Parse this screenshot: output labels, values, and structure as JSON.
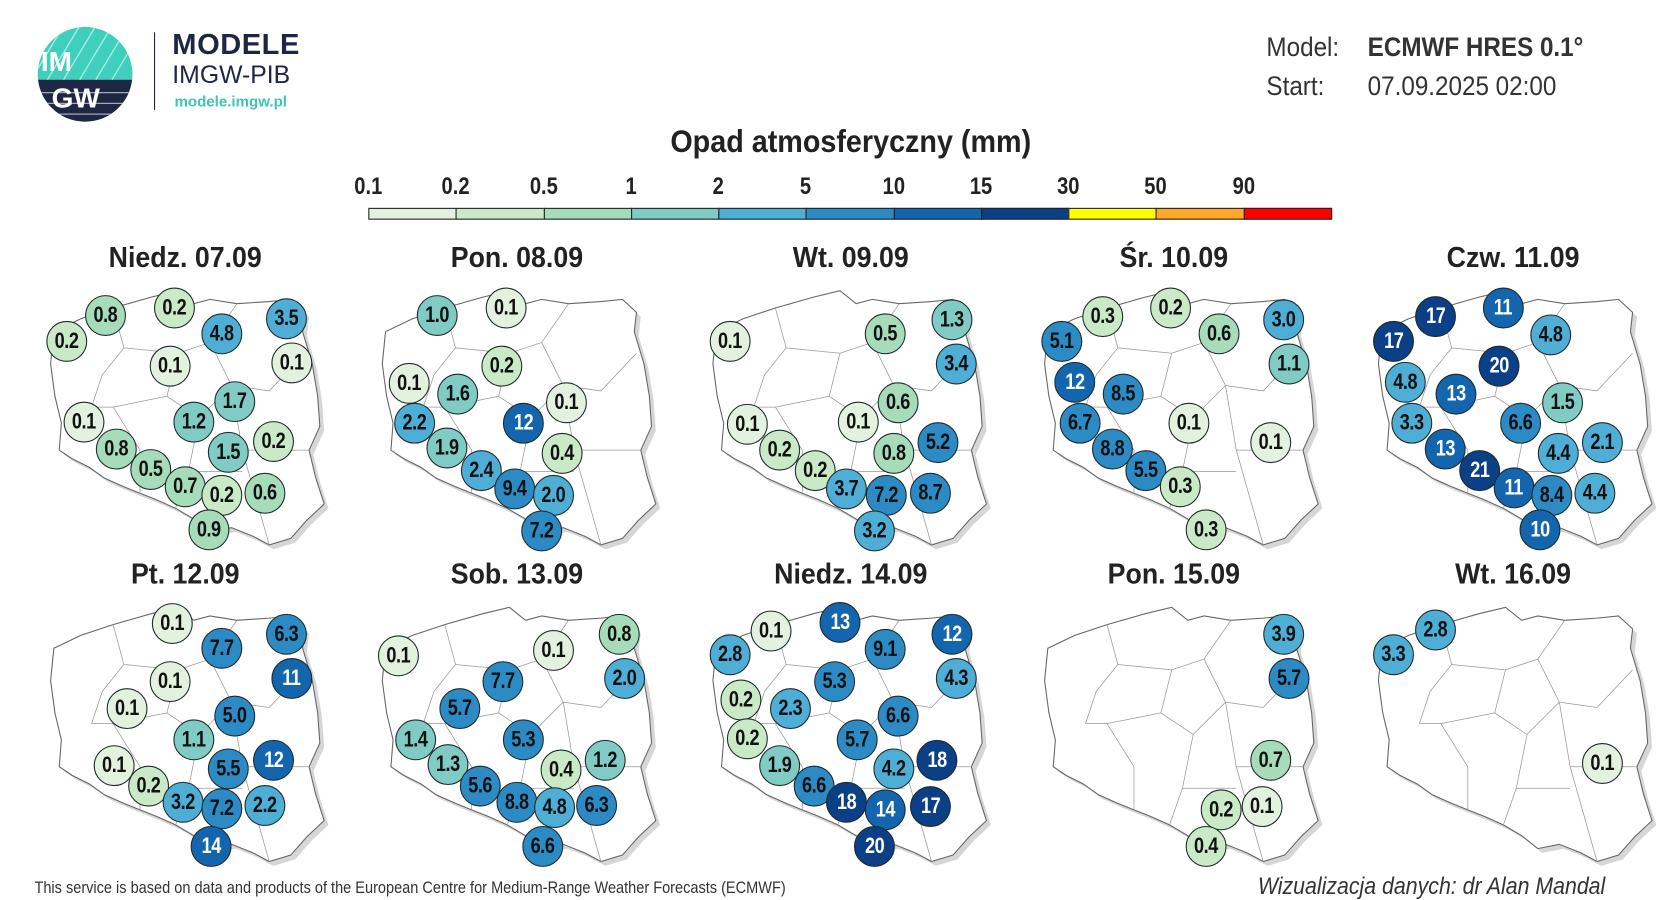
{
  "header": {
    "logo_text": "IMGW",
    "brand_title": "MODELE",
    "brand_subtitle": "IMGW-PIB",
    "brand_url": "modele.imgw.pl",
    "model_label": "Model:",
    "model_value": "ECMWF HRES 0.1°",
    "start_label": "Start:",
    "start_value": "07.09.2025 02:00"
  },
  "chart_data": {
    "type": "map-bubbles",
    "title": "Opad atmosferyczny (mm)",
    "legend": {
      "thresholds": [
        "0.1",
        "0.2",
        "0.5",
        "1",
        "2",
        "5",
        "10",
        "15",
        "30",
        "50",
        "90"
      ],
      "colors": [
        "#e3f2de",
        "#c9e9c7",
        "#a6dcb9",
        "#80cbc3",
        "#4eaed6",
        "#2c8bc5",
        "#1366ad",
        "#0b3f86",
        "#ffff00",
        "#ffa726",
        "#ff0000"
      ]
    },
    "panels": [
      {
        "title": "Niedz. 07.09",
        "values": [
          0.2,
          0.8,
          0.2,
          4.8,
          3.5,
          0.1,
          0.1,
          1.7,
          1.2,
          0.1,
          0.8,
          1.5,
          0.2,
          0.5,
          0.7,
          0.2,
          0.6,
          0.9
        ]
      },
      {
        "title": "Pon. 08.09",
        "values": [
          1.0,
          0.1,
          0.1,
          1.6,
          0.2,
          0.1,
          12,
          2.2,
          1.9,
          0.4,
          2.4,
          9.4,
          2.0,
          7.2
        ]
      },
      {
        "title": "Wt. 09.09",
        "values": [
          0.1,
          0.5,
          1.3,
          3.4,
          0.6,
          0.1,
          0.1,
          0.2,
          0.8,
          5.2,
          0.2,
          3.7,
          7.2,
          8.7,
          3.2
        ]
      },
      {
        "title": "Śr. 10.09",
        "values": [
          0.3,
          0.2,
          3.0,
          0.6,
          5.1,
          1.1,
          12,
          8.5,
          6.7,
          0.1,
          0.1,
          8.8,
          5.5,
          0.3,
          0.3
        ]
      },
      {
        "title": "Czw. 11.09",
        "values": [
          17,
          11,
          17,
          4.8,
          20,
          4.8,
          13,
          1.5,
          3.3,
          6.6,
          13,
          4.4,
          2.1,
          21,
          11,
          8.4,
          4.4,
          10
        ]
      },
      {
        "title": "Pt. 12.09",
        "values": [
          0.1,
          7.7,
          6.3,
          11,
          0.1,
          0.1,
          5.0,
          1.1,
          0.1,
          5.5,
          12,
          0.2,
          3.2,
          7.2,
          2.2,
          14
        ]
      },
      {
        "title": "Sob. 13.09",
        "values": [
          0.1,
          0.1,
          0.8,
          7.7,
          2.0,
          5.7,
          1.4,
          5.3,
          1.3,
          1.2,
          0.4,
          5.6,
          8.8,
          4.8,
          6.3,
          6.6
        ]
      },
      {
        "title": "Niedz. 14.09",
        "values": [
          13,
          0.1,
          2.8,
          9.1,
          12,
          4.3,
          5.3,
          0.2,
          2.3,
          6.6,
          0.2,
          5.7,
          18,
          4.2,
          1.9,
          6.6,
          18,
          14,
          17,
          20
        ]
      },
      {
        "title": "Pon. 15.09",
        "values": [
          3.9,
          5.7,
          0.7,
          0.2,
          0.1,
          0.4
        ]
      },
      {
        "title": "Wt. 16.09",
        "values": [
          3.3,
          2.8,
          0.1
        ]
      }
    ]
  },
  "footer": {
    "attribution": "This service is based on data and products of the European Centre for Medium-Range Weather Forecasts (ECMWF)",
    "credit": "Wizualizacja danych: dr Alan Mandal"
  }
}
